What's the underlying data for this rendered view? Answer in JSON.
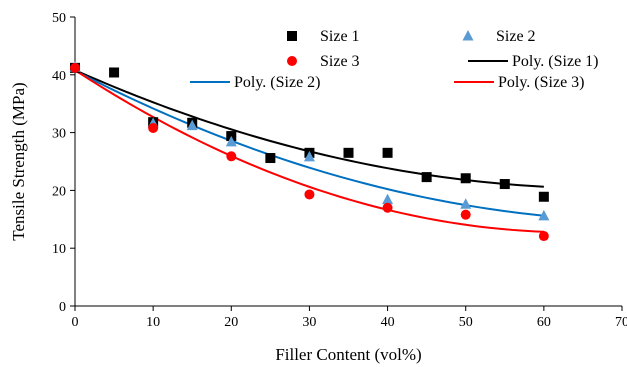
{
  "chart_data": {
    "type": "scatter",
    "title": "",
    "xlabel": "Filler Content (vol%)",
    "ylabel": "Tensile Strength (MPa)",
    "xlim": [
      0,
      70
    ],
    "ylim": [
      0,
      50
    ],
    "xticks": [
      0,
      10,
      20,
      30,
      40,
      50,
      60,
      70
    ],
    "yticks": [
      0,
      10,
      20,
      30,
      40,
      50
    ],
    "grid": false,
    "legend_position": "top-right",
    "series": [
      {
        "name": "Size 1",
        "marker": "square",
        "color": "#000000",
        "x": [
          0,
          5,
          10,
          15,
          20,
          25,
          30,
          35,
          40,
          45,
          50,
          55,
          60
        ],
        "y": [
          41.2,
          40.4,
          31.8,
          31.7,
          29.4,
          25.6,
          26.5,
          26.5,
          26.5,
          22.3,
          22.1,
          21.1,
          18.9
        ]
      },
      {
        "name": "Size 2",
        "marker": "triangle",
        "color": "#5B9BD5",
        "x": [
          0,
          10,
          15,
          20,
          30,
          40,
          50,
          60
        ],
        "y": [
          41.3,
          31.6,
          31.2,
          28.4,
          25.8,
          18.4,
          17.6,
          15.6
        ]
      },
      {
        "name": "Size 3",
        "marker": "circle",
        "color": "#FF0000",
        "x": [
          0,
          10,
          20,
          30,
          40,
          50,
          60
        ],
        "y": [
          41.2,
          30.8,
          25.9,
          19.3,
          17.0,
          15.8,
          12.1
        ]
      }
    ],
    "trendlines": [
      {
        "name": "Poly. (Size 1)",
        "color": "#000000",
        "coeffs": [
          40.8,
          -0.6,
          0.0044
        ],
        "xrange": [
          0,
          60
        ]
      },
      {
        "name": "Poly. (Size 2)",
        "color": "#0070C0",
        "coeffs": [
          40.7,
          -0.7,
          0.0047
        ],
        "xrange": [
          0,
          60
        ]
      },
      {
        "name": "Poly. (Size 3)",
        "color": "#FF0000",
        "coeffs": [
          40.8,
          -0.88,
          0.0069
        ],
        "xrange": [
          0,
          60
        ]
      }
    ],
    "legend": [
      {
        "label": "Size 1",
        "kind": "square",
        "color": "#000000"
      },
      {
        "label": "Size 2",
        "kind": "triangle",
        "color": "#5B9BD5"
      },
      {
        "label": "Size 3",
        "kind": "circle",
        "color": "#FF0000"
      },
      {
        "label": "Poly. (Size 1)",
        "kind": "line",
        "color": "#000000"
      },
      {
        "label": "Poly. (Size 2)",
        "kind": "line",
        "color": "#0070C0"
      },
      {
        "label": "Poly. (Size 3)",
        "kind": "line",
        "color": "#FF0000"
      }
    ]
  }
}
